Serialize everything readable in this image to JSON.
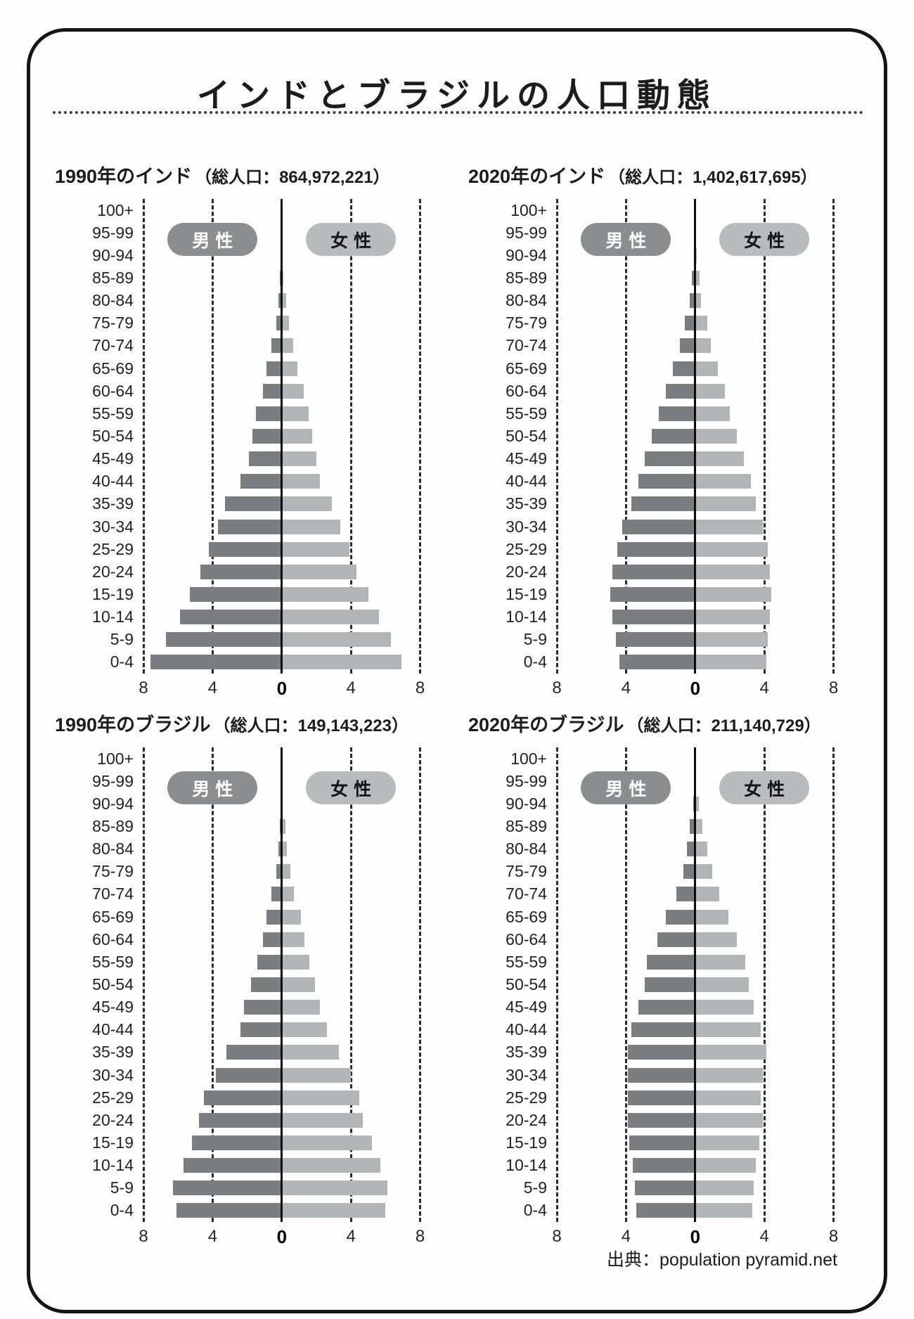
{
  "page_title": "インドとブラジルの人口動態",
  "source_label": "出典：population pyramid.net",
  "legend": {
    "male": "男性",
    "female": "女性"
  },
  "age_groups": [
    "100+",
    "95-99",
    "90-94",
    "85-89",
    "80-84",
    "75-79",
    "70-74",
    "65-69",
    "60-64",
    "55-59",
    "50-54",
    "45-49",
    "40-44",
    "35-39",
    "30-34",
    "25-29",
    "20-24",
    "15-19",
    "10-14",
    "5-9",
    "0-4"
  ],
  "colors": {
    "male_bar": "#7b7e81",
    "female_bar": "#b2b4b6",
    "male_pill": "#8b8e91",
    "female_pill": "#b9bbbd",
    "male_pill_text": "#ffffff",
    "female_pill_text": "#141414",
    "text": "#1c1c1c"
  },
  "chart_data": [
    {
      "type": "bar",
      "orientation": "population-pyramid",
      "title_name": "1990年のインド",
      "title_total": "（総人口：864,972,221）",
      "country": "インド",
      "year": 1990,
      "total_population": "864,972,221",
      "xlim": [
        -8,
        8
      ],
      "x_ticks": [
        "8",
        "4",
        "0",
        "4",
        "8"
      ],
      "series": [
        {
          "name": "男性",
          "values": [
            0,
            0,
            0,
            0.1,
            0.2,
            0.3,
            0.6,
            0.9,
            1.1,
            1.5,
            1.7,
            1.9,
            2.4,
            3.3,
            3.7,
            4.2,
            4.7,
            5.3,
            5.9,
            6.7,
            7.6
          ]
        },
        {
          "name": "女性",
          "values": [
            0,
            0,
            0,
            0.1,
            0.25,
            0.4,
            0.65,
            0.9,
            1.25,
            1.55,
            1.75,
            2.0,
            2.2,
            2.9,
            3.4,
            3.9,
            4.3,
            5.0,
            5.6,
            6.3,
            6.9
          ]
        }
      ]
    },
    {
      "type": "bar",
      "orientation": "population-pyramid",
      "title_name": "2020年のインド",
      "title_total": "（総人口：1,402,617,695）",
      "country": "インド",
      "year": 2020,
      "total_population": "1,402,617,695",
      "xlim": [
        -8,
        8
      ],
      "x_ticks": [
        "8",
        "4",
        "0",
        "4",
        "8"
      ],
      "series": [
        {
          "name": "男性",
          "values": [
            0,
            0,
            0.05,
            0.2,
            0.3,
            0.6,
            0.9,
            1.3,
            1.7,
            2.1,
            2.5,
            2.9,
            3.3,
            3.7,
            4.2,
            4.5,
            4.8,
            4.9,
            4.8,
            4.6,
            4.4
          ]
        },
        {
          "name": "女性",
          "values": [
            0,
            0,
            0.1,
            0.25,
            0.35,
            0.7,
            0.9,
            1.3,
            1.7,
            2.0,
            2.4,
            2.8,
            3.2,
            3.5,
            3.9,
            4.2,
            4.3,
            4.4,
            4.3,
            4.2,
            4.1
          ]
        }
      ]
    },
    {
      "type": "bar",
      "orientation": "population-pyramid",
      "title_name": "1990年のブラジル",
      "title_total": "（総人口：149,143,223）",
      "country": "ブラジル",
      "year": 1990,
      "total_population": "149,143,223",
      "xlim": [
        -8,
        8
      ],
      "x_ticks": [
        "8",
        "4",
        "0",
        "4",
        "8"
      ],
      "series": [
        {
          "name": "男性",
          "values": [
            0,
            0,
            0.05,
            0.1,
            0.2,
            0.3,
            0.6,
            0.9,
            1.1,
            1.4,
            1.8,
            2.2,
            2.4,
            3.2,
            3.8,
            4.5,
            4.8,
            5.2,
            5.7,
            6.3,
            6.1
          ]
        },
        {
          "name": "女性",
          "values": [
            0,
            0,
            0.05,
            0.2,
            0.3,
            0.5,
            0.7,
            1.1,
            1.3,
            1.6,
            1.9,
            2.2,
            2.6,
            3.3,
            4.0,
            4.5,
            4.7,
            5.2,
            5.7,
            6.1,
            6.0
          ]
        }
      ]
    },
    {
      "type": "bar",
      "orientation": "population-pyramid",
      "title_name": "2020年のブラジル",
      "title_total": "（総人口：211,140,729）",
      "country": "ブラジル",
      "year": 2020,
      "total_population": "211,140,729",
      "xlim": [
        -8,
        8
      ],
      "x_ticks": [
        "8",
        "4",
        "0",
        "4",
        "8"
      ],
      "series": [
        {
          "name": "男性",
          "values": [
            0,
            0,
            0.1,
            0.3,
            0.5,
            0.7,
            1.1,
            1.7,
            2.2,
            2.8,
            2.9,
            3.3,
            3.7,
            3.9,
            3.9,
            3.9,
            3.9,
            3.8,
            3.6,
            3.5,
            3.4
          ]
        },
        {
          "name": "女性",
          "values": [
            0,
            0,
            0.2,
            0.4,
            0.7,
            1.0,
            1.4,
            1.9,
            2.4,
            2.9,
            3.1,
            3.4,
            3.8,
            4.1,
            3.9,
            3.8,
            3.9,
            3.7,
            3.5,
            3.4,
            3.3
          ]
        }
      ]
    }
  ]
}
